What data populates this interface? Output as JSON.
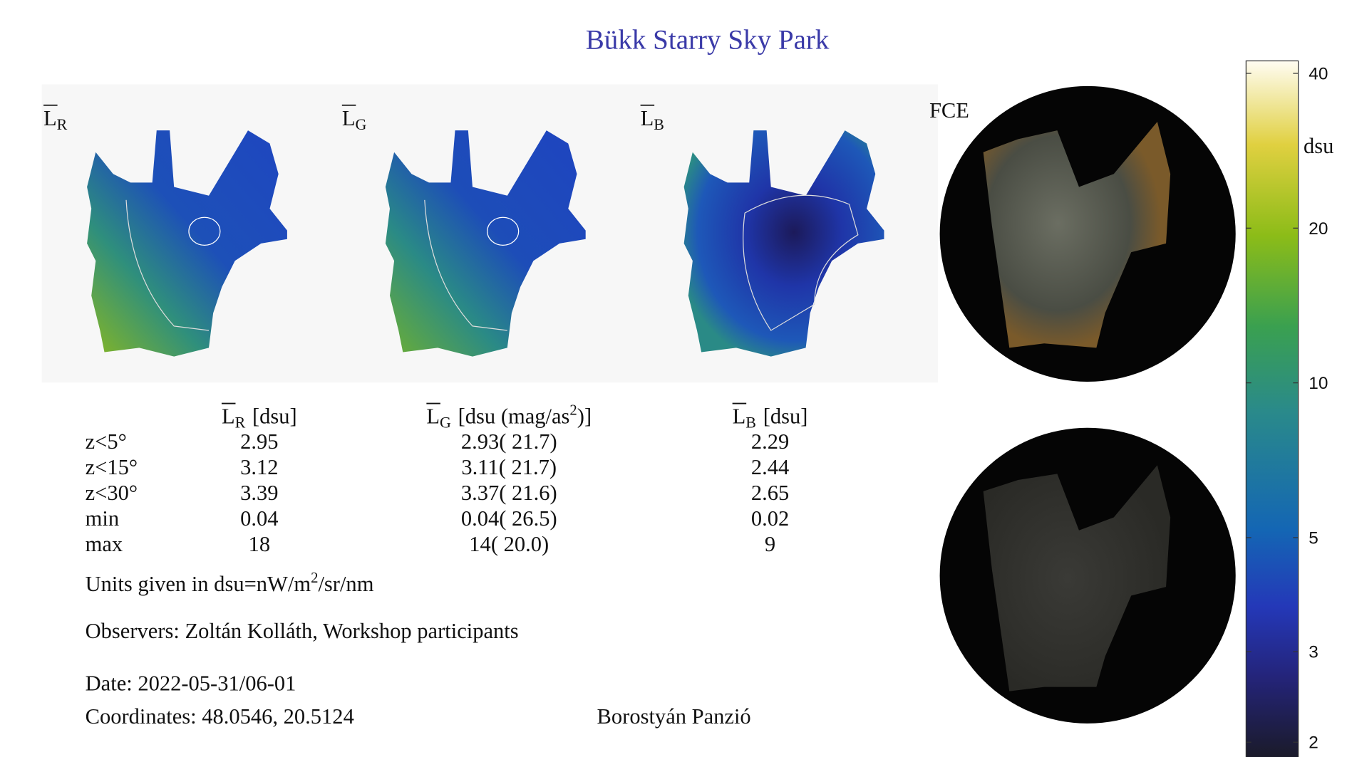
{
  "title": "Bükk Starry Sky Park",
  "panels": [
    {
      "symbol": "L",
      "subscript": "R"
    },
    {
      "symbol": "L",
      "subscript": "G"
    },
    {
      "symbol": "L",
      "subscript": "B"
    },
    {
      "label": "FCE"
    }
  ],
  "table": {
    "headers": [
      {
        "symbol": "L",
        "subscript": "R",
        "unit": "[dsu]"
      },
      {
        "symbol": "L",
        "subscript": "G",
        "unit": "[dsu (mag/as",
        "superscript": "2",
        "unit_end": ")]"
      },
      {
        "symbol": "L",
        "subscript": "B",
        "unit": "[dsu]"
      }
    ],
    "rows": [
      [
        "z<5°",
        "2.95",
        "2.93( 21.7)",
        "2.29"
      ],
      [
        "z<15°",
        "3.12",
        "3.11( 21.7)",
        "2.44"
      ],
      [
        "z<30°",
        "3.39",
        "3.37( 21.6)",
        "2.65"
      ],
      [
        "min",
        "0.04",
        "0.04( 26.5)",
        "0.02"
      ],
      [
        "max",
        "18",
        "14( 20.0)",
        "9"
      ]
    ]
  },
  "units_note": {
    "text": "Units given in dsu=nW/m",
    "superscript": "2",
    "text_end": "/sr/nm"
  },
  "observers": "Observers: Zoltán Kolláth, Workshop participants",
  "date": "Date: 2022-05-31/06-01",
  "coordinates": "Coordinates: 48.0546, 20.5124",
  "location": "Borostyán Panzió",
  "colorbar": {
    "label": "dsu",
    "log_scale": true,
    "lim": [
      1.84,
      42.3
    ],
    "ticks": [
      2,
      3,
      5,
      10,
      20,
      40
    ]
  }
}
